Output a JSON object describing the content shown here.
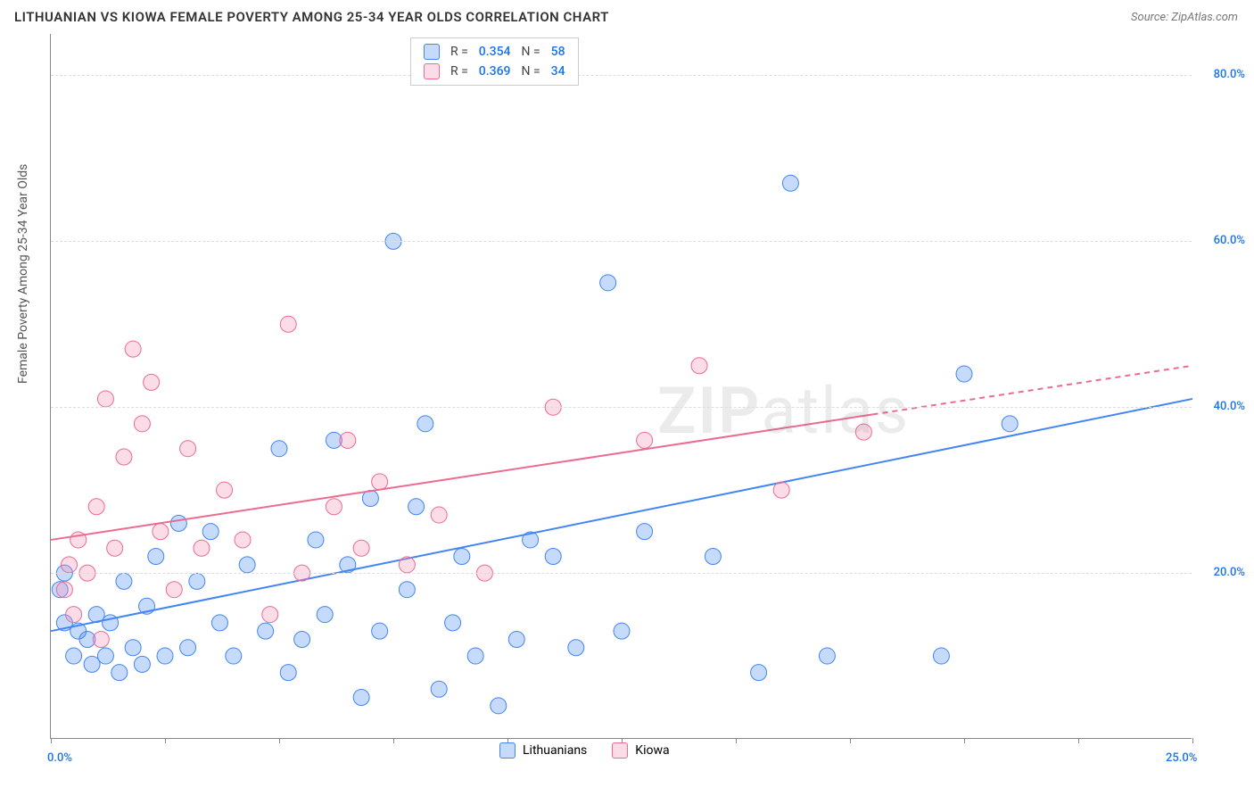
{
  "title": "LITHUANIAN VS KIOWA FEMALE POVERTY AMONG 25-34 YEAR OLDS CORRELATION CHART",
  "source": "Source: ZipAtlas.com",
  "ylabel": "Female Poverty Among 25-34 Year Olds",
  "watermark": {
    "bold": "ZIP",
    "light": "atlas"
  },
  "chart": {
    "type": "scatter",
    "xlim": [
      0,
      25
    ],
    "ylim": [
      0,
      85
    ],
    "x_ticks": [
      0,
      2.5,
      5,
      7.5,
      10,
      12.5,
      15,
      17.5,
      20,
      22.5,
      25
    ],
    "x_tick_labels": {
      "0": "0.0%",
      "25": "25.0%"
    },
    "y_ticks": [
      20,
      40,
      60,
      80
    ],
    "y_tick_labels": {
      "20": "20.0%",
      "40": "40.0%",
      "60": "60.0%",
      "80": "80.0%"
    },
    "background_color": "#ffffff",
    "grid_color": "#dddddd",
    "marker_radius": 9,
    "marker_opacity": 0.35,
    "line_width": 2,
    "series": [
      {
        "name": "Lithuanians",
        "color": "#4285f4",
        "fill": "rgba(66,133,244,0.3)",
        "stroke": "#4285f4",
        "R": "0.354",
        "N": "58",
        "trend": {
          "x1": 0,
          "y1": 13,
          "x2": 25,
          "y2": 41,
          "dash_after_x": null
        },
        "points": [
          [
            0.2,
            18
          ],
          [
            0.3,
            14
          ],
          [
            0.3,
            20
          ],
          [
            0.5,
            10
          ],
          [
            0.6,
            13
          ],
          [
            0.8,
            12
          ],
          [
            0.9,
            9
          ],
          [
            1.0,
            15
          ],
          [
            1.2,
            10
          ],
          [
            1.3,
            14
          ],
          [
            1.5,
            8
          ],
          [
            1.6,
            19
          ],
          [
            1.8,
            11
          ],
          [
            2.0,
            9
          ],
          [
            2.1,
            16
          ],
          [
            2.3,
            22
          ],
          [
            2.5,
            10
          ],
          [
            2.8,
            26
          ],
          [
            3.0,
            11
          ],
          [
            3.2,
            19
          ],
          [
            3.5,
            25
          ],
          [
            3.7,
            14
          ],
          [
            4.0,
            10
          ],
          [
            4.3,
            21
          ],
          [
            4.7,
            13
          ],
          [
            5.0,
            35
          ],
          [
            5.2,
            8
          ],
          [
            5.5,
            12
          ],
          [
            5.8,
            24
          ],
          [
            6.0,
            15
          ],
          [
            6.2,
            36
          ],
          [
            6.5,
            21
          ],
          [
            6.8,
            5
          ],
          [
            7.0,
            29
          ],
          [
            7.2,
            13
          ],
          [
            7.5,
            60
          ],
          [
            7.8,
            18
          ],
          [
            8.0,
            28
          ],
          [
            8.2,
            38
          ],
          [
            8.5,
            6
          ],
          [
            8.8,
            14
          ],
          [
            9.0,
            22
          ],
          [
            9.3,
            10
          ],
          [
            9.8,
            4
          ],
          [
            10.2,
            12
          ],
          [
            10.5,
            24
          ],
          [
            11.0,
            22
          ],
          [
            11.5,
            11
          ],
          [
            12.2,
            55
          ],
          [
            12.5,
            13
          ],
          [
            13.0,
            25
          ],
          [
            14.5,
            22
          ],
          [
            15.5,
            8
          ],
          [
            16.2,
            67
          ],
          [
            17.0,
            10
          ],
          [
            19.5,
            10
          ],
          [
            20.0,
            44
          ],
          [
            21.0,
            38
          ]
        ]
      },
      {
        "name": "Kiowa",
        "color": "#ec6b8f",
        "fill": "rgba(244,143,177,0.3)",
        "stroke": "#ec6b8f",
        "R": "0.369",
        "N": "34",
        "trend": {
          "x1": 0,
          "y1": 24,
          "x2": 25,
          "y2": 45,
          "dash_after_x": 18
        },
        "points": [
          [
            0.3,
            18
          ],
          [
            0.4,
            21
          ],
          [
            0.5,
            15
          ],
          [
            0.6,
            24
          ],
          [
            0.8,
            20
          ],
          [
            1.0,
            28
          ],
          [
            1.1,
            12
          ],
          [
            1.2,
            41
          ],
          [
            1.4,
            23
          ],
          [
            1.6,
            34
          ],
          [
            1.8,
            47
          ],
          [
            2.0,
            38
          ],
          [
            2.2,
            43
          ],
          [
            2.4,
            25
          ],
          [
            2.7,
            18
          ],
          [
            3.0,
            35
          ],
          [
            3.3,
            23
          ],
          [
            3.8,
            30
          ],
          [
            4.2,
            24
          ],
          [
            4.8,
            15
          ],
          [
            5.2,
            50
          ],
          [
            5.5,
            20
          ],
          [
            6.2,
            28
          ],
          [
            6.5,
            36
          ],
          [
            6.8,
            23
          ],
          [
            7.2,
            31
          ],
          [
            7.8,
            21
          ],
          [
            8.5,
            27
          ],
          [
            9.5,
            20
          ],
          [
            11.0,
            40
          ],
          [
            13.0,
            36
          ],
          [
            14.2,
            45
          ],
          [
            16.0,
            30
          ],
          [
            17.8,
            37
          ]
        ]
      }
    ]
  },
  "legend_top": [
    {
      "swatch": "blue",
      "r_label": "R =",
      "r_val": "0.354",
      "n_label": "N =",
      "n_val": "58"
    },
    {
      "swatch": "pink",
      "r_label": "R =",
      "r_val": "0.369",
      "n_label": "N =",
      "n_val": "34"
    }
  ],
  "legend_bottom": [
    {
      "swatch": "blue",
      "label": "Lithuanians"
    },
    {
      "swatch": "pink",
      "label": "Kiowa"
    }
  ]
}
